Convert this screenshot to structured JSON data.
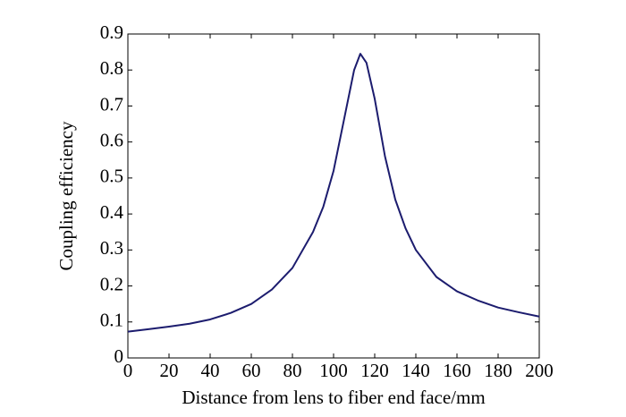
{
  "chart_data": {
    "type": "line",
    "x_label": "Distance from lens to fiber end face/mm",
    "y_label": "Coupling efficiency",
    "x": [
      0,
      10,
      20,
      30,
      40,
      50,
      60,
      70,
      80,
      90,
      95,
      100,
      105,
      110,
      113,
      116,
      120,
      125,
      130,
      135,
      140,
      150,
      160,
      170,
      180,
      190,
      200
    ],
    "values": [
      0.073,
      0.08,
      0.087,
      0.095,
      0.107,
      0.125,
      0.15,
      0.19,
      0.25,
      0.35,
      0.42,
      0.52,
      0.66,
      0.8,
      0.845,
      0.82,
      0.72,
      0.56,
      0.44,
      0.36,
      0.3,
      0.225,
      0.185,
      0.16,
      0.14,
      0.127,
      0.115
    ],
    "color": "#1c1c6e",
    "xlim": [
      0,
      200
    ],
    "xticks": [
      0,
      20,
      40,
      60,
      80,
      100,
      120,
      140,
      160,
      180,
      200
    ],
    "ylim": [
      0,
      0.9
    ],
    "yticks": [
      0,
      0.1,
      0.2,
      0.3,
      0.4,
      0.5,
      0.6,
      0.7,
      0.8,
      0.9
    ]
  }
}
